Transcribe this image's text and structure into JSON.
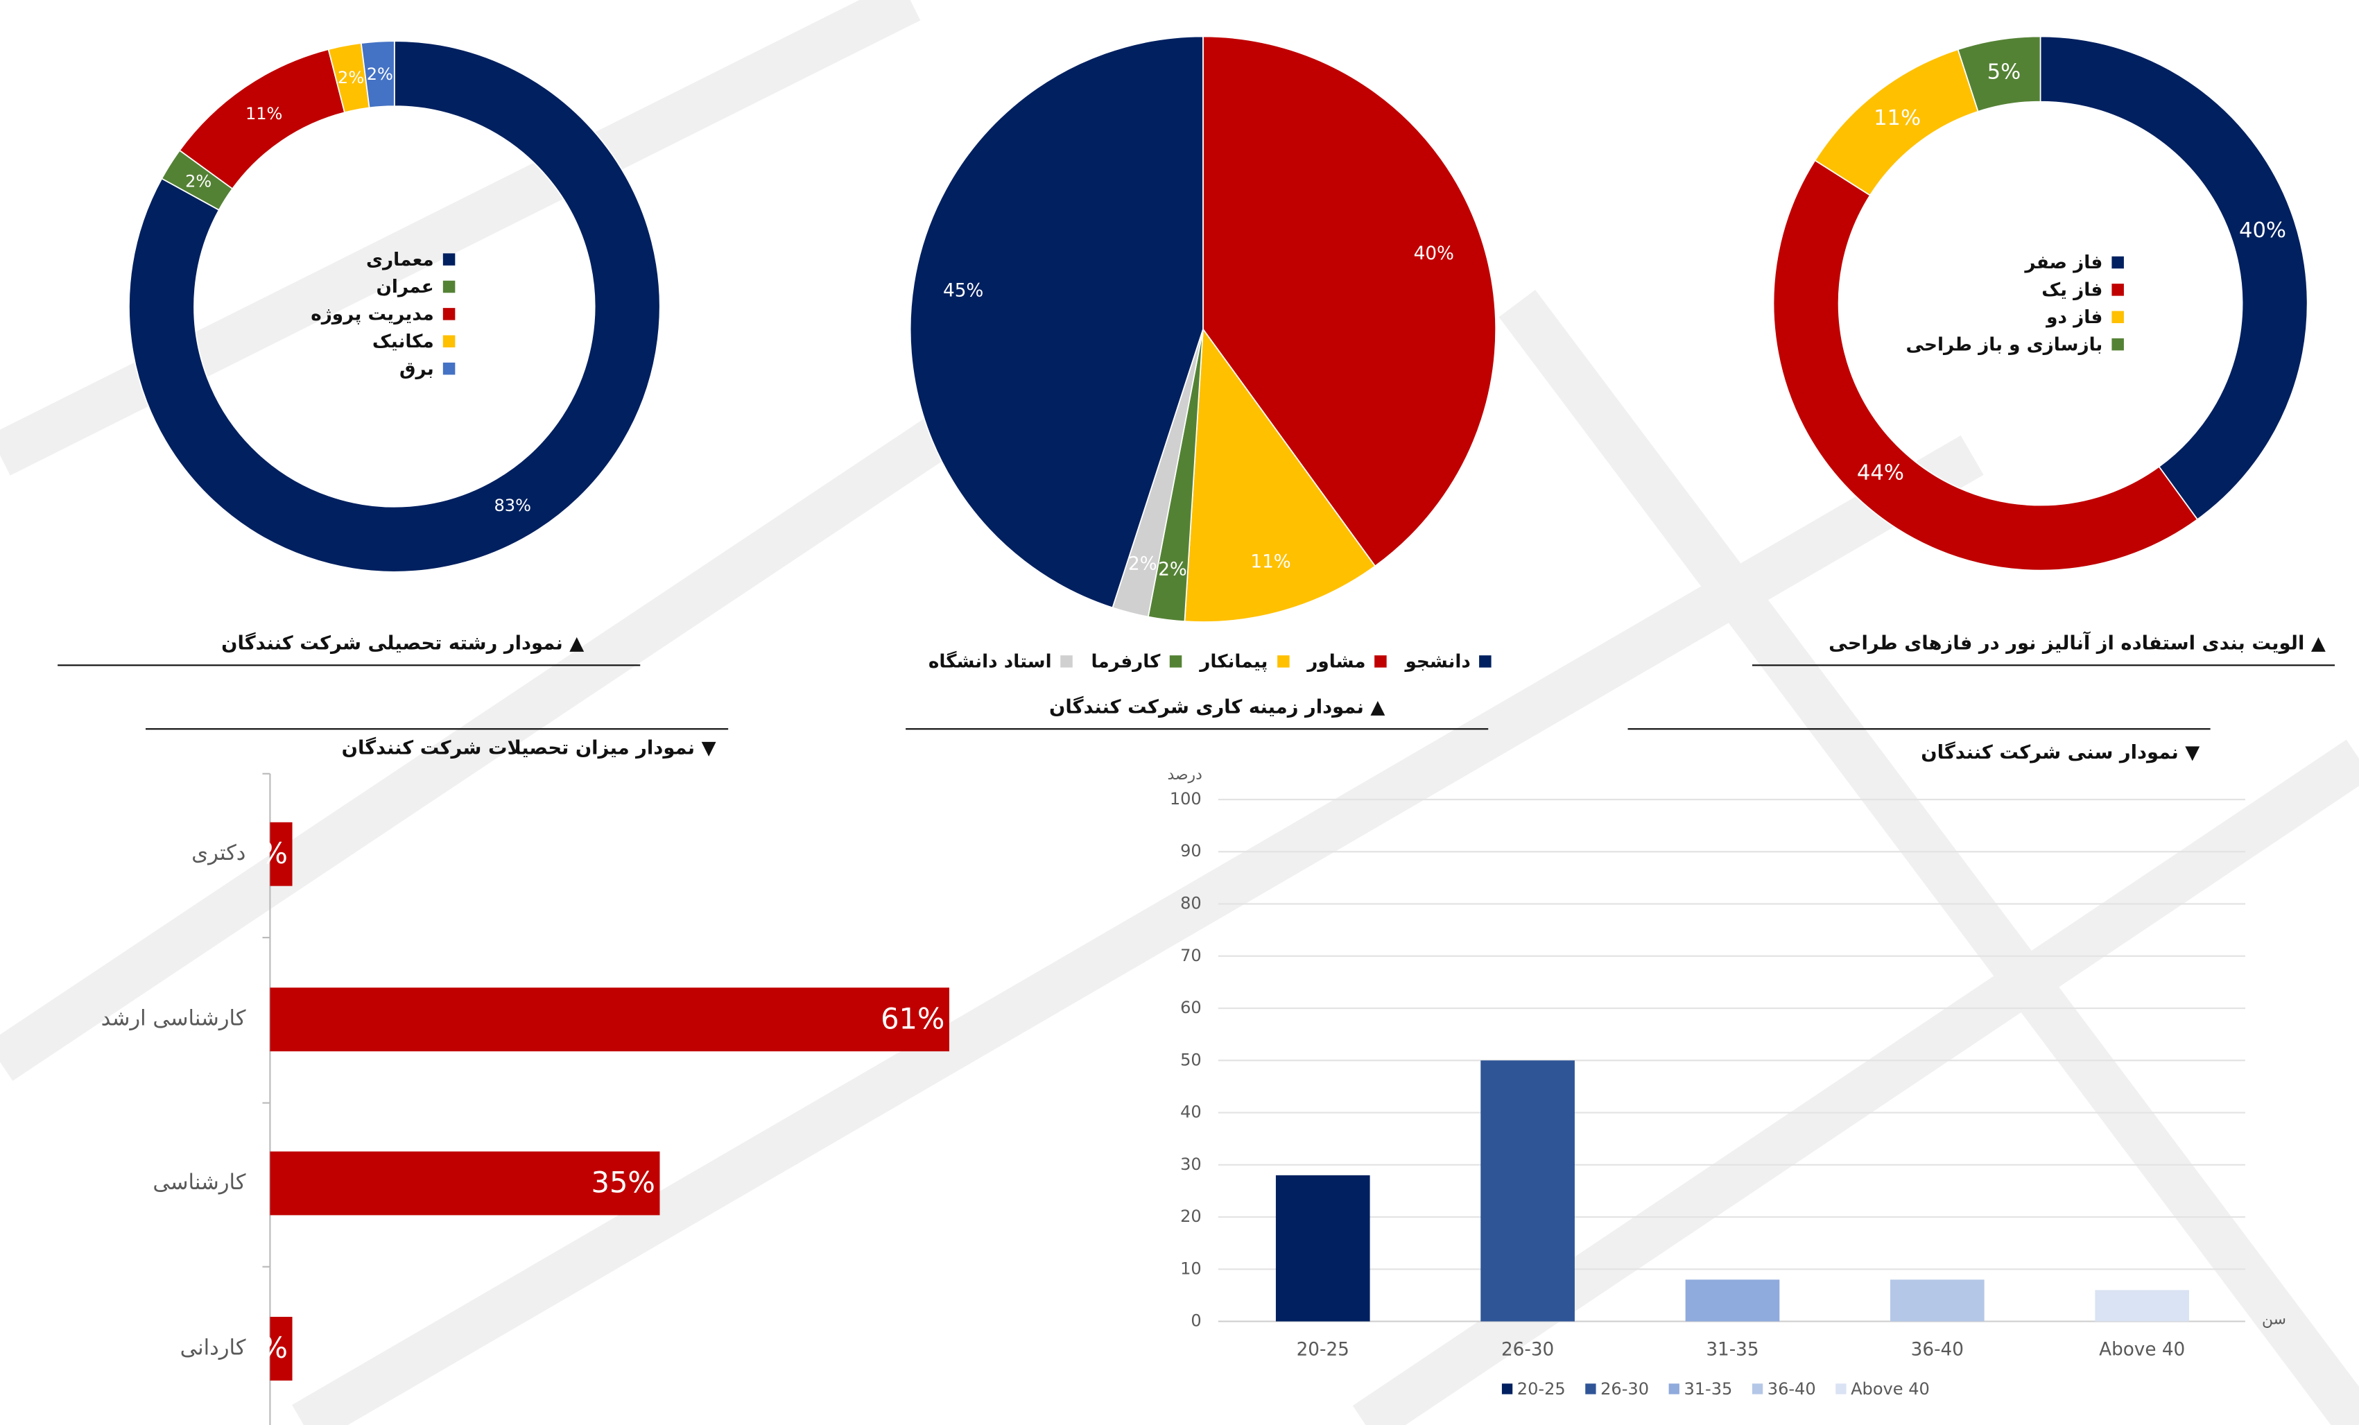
{
  "colors": {
    "navy": "#002060",
    "red": "#C00000",
    "yellow": "#FFC000",
    "green": "#548235",
    "blue": "#4472C4",
    "grey": "#D0D0D0"
  },
  "titles": {
    "field": "▲ نمودار رشته تحصیلی شرکت کنندگان",
    "work": "▲ نمودار زمینه کاری شرکت کنندگان",
    "phase": "▲ الویت بندی استفاده از آنالیز نور در فازهای طراحی",
    "education": "▼ نمودار میزان تحصیلات شرکت کنندگان",
    "age": "▼ نمودار سنی شرکت کنندگان"
  },
  "chart_data": [
    {
      "type": "pie",
      "variant": "donut",
      "title": "▲ نمودار رشته تحصیلی شرکت کنندگان",
      "labels": [
        "معماری",
        "عمران",
        "مدیریت پروژه",
        "مکانیک",
        "برق"
      ],
      "values": [
        83,
        2,
        11,
        2,
        2
      ],
      "value_labels": [
        "83%",
        "2%",
        "11%",
        "2%",
        "2%"
      ],
      "colors": [
        "#002060",
        "#548235",
        "#C00000",
        "#FFC000",
        "#4472C4"
      ],
      "legend": "center"
    },
    {
      "type": "pie",
      "title": "▲ نمودار زمینه کاری شرکت کنندگان",
      "labels": [
        "دانشجو",
        "مشاور",
        "پیمانکار",
        "کارفرما",
        "استاد دانشگاه"
      ],
      "order": [
        "مشاور",
        "پیمانکار",
        "کارفرما",
        "استاد دانشگاه",
        "دانشجو"
      ],
      "values": [
        40,
        11,
        2,
        2,
        45
      ],
      "value_labels": [
        "40%",
        "11%",
        "2%",
        "2%",
        "45%"
      ],
      "colors": [
        "#C00000",
        "#FFC000",
        "#548235",
        "#D0D0D0",
        "#002060"
      ],
      "legend_labels": [
        "دانشجو",
        "مشاور",
        "پیمانکار",
        "کارفرما",
        "استاد دانشگاه"
      ],
      "legend_colors": [
        "#002060",
        "#C00000",
        "#FFC000",
        "#548235",
        "#D0D0D0"
      ],
      "legend": "bottom"
    },
    {
      "type": "pie",
      "variant": "donut",
      "title": "▲ الویت بندی استفاده از آنالیز نور در فازهای طراحی",
      "labels": [
        "فاز صفر",
        "فاز یک",
        "فاز دو",
        "بازسازی و باز طراحی"
      ],
      "values": [
        40,
        44,
        11,
        5
      ],
      "value_labels": [
        "40%",
        "44%",
        "11%",
        "5%"
      ],
      "colors": [
        "#002060",
        "#C00000",
        "#FFC000",
        "#548235"
      ],
      "legend": "center"
    },
    {
      "type": "bar",
      "orientation": "horizontal",
      "title": "▼ نمودار میزان تحصیلات شرکت کنندگان",
      "categories": [
        "دکتری",
        "کارشناسی ارشد",
        "کارشناسی",
        "کاردانی"
      ],
      "values": [
        2,
        61,
        35,
        2
      ],
      "value_labels": [
        "2%",
        "61%",
        "35%",
        "2%"
      ],
      "color": "#C00000"
    },
    {
      "type": "bar",
      "title": "▼ نمودار سنی شرکت کنندگان",
      "categories": [
        "20-25",
        "26-30",
        "31-35",
        "36-40",
        "Above 40"
      ],
      "values": [
        28,
        50,
        8,
        8,
        6
      ],
      "colors": [
        "#002060",
        "#2F5597",
        "#8FAADC",
        "#B4C7E7",
        "#DAE3F3"
      ],
      "ylabel": "درصد",
      "xlabel": "سن",
      "ylim": [
        0,
        100
      ],
      "yticks": [
        "0",
        "10",
        "20",
        "30",
        "40",
        "50",
        "60",
        "70",
        "80",
        "90",
        "100"
      ],
      "grid": true,
      "legend": "bottom"
    }
  ]
}
